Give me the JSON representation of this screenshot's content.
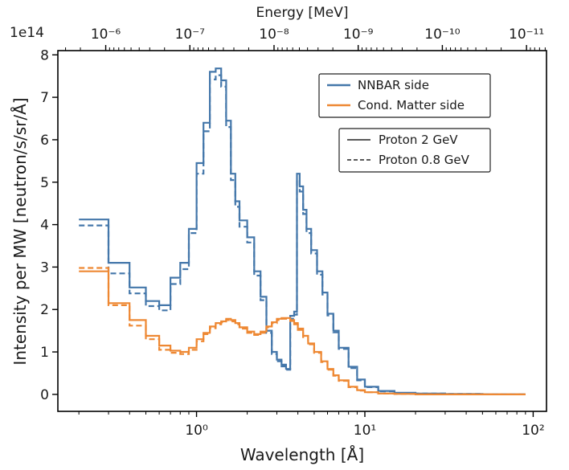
{
  "chart_data": {
    "type": "line",
    "drawstyle": "steps",
    "xlabel": "Wavelength [Å]",
    "ylabel": "Intensity per MW [neutron/s/sr/Å]",
    "secondary_xlabel": "Energy [MeV]",
    "y_offset_label": "1e14",
    "xscale": "log",
    "xlim": [
      0.15,
      120
    ],
    "ylim": [
      -0.4,
      8.1
    ],
    "x_ticks": [
      1,
      10,
      100
    ],
    "x_tick_labels": [
      "10⁰",
      "10¹",
      "10²"
    ],
    "y_ticks": [
      0,
      1,
      2,
      3,
      4,
      5,
      6,
      7,
      8
    ],
    "y_tick_labels": [
      "0",
      "1",
      "2",
      "3",
      "4",
      "5",
      "6",
      "7",
      "8"
    ],
    "energy_ticks": [
      0.2887,
      0.913,
      2.887,
      9.13,
      28.87,
      91.3
    ],
    "energy_tick_labels": [
      "10⁻⁶",
      "10⁻⁷",
      "10⁻⁸",
      "10⁻⁹",
      "10⁻¹⁰",
      "10⁻¹¹"
    ],
    "grid": false,
    "legends": [
      {
        "placement": "top-right",
        "entries": [
          {
            "label": "NNBAR side",
            "color": "#4477aa",
            "style": "solid"
          },
          {
            "label": "Cond. Matter side",
            "color": "#ee8833",
            "style": "solid"
          }
        ]
      },
      {
        "placement": "upper-right",
        "entries": [
          {
            "label": "Proton 2 GeV",
            "color": "#222222",
            "style": "solid"
          },
          {
            "label": "Proton 0.8 GeV",
            "color": "#222222",
            "style": "dashed"
          }
        ]
      }
    ],
    "series": [
      {
        "color": "#4477aa",
        "style": "solid",
        "x": [
          0.2,
          0.3,
          0.4,
          0.5,
          0.6,
          0.7,
          0.8,
          0.9,
          1.0,
          1.1,
          1.2,
          1.3,
          1.4,
          1.5,
          1.6,
          1.7,
          1.8,
          2.0,
          2.2,
          2.4,
          2.6,
          2.8,
          3.0,
          3.2,
          3.4,
          3.6,
          3.8,
          3.95,
          4.1,
          4.3,
          4.5,
          4.8,
          5.2,
          5.6,
          6.0,
          6.5,
          7.0,
          8.0,
          9.0,
          10.0,
          12.0,
          15.0,
          20.0,
          30.0,
          50.0,
          90.0
        ],
        "y": [
          4.12,
          3.1,
          2.52,
          2.2,
          2.1,
          2.75,
          3.1,
          3.9,
          5.45,
          6.4,
          7.6,
          7.68,
          7.4,
          6.45,
          5.2,
          4.55,
          4.1,
          3.7,
          2.9,
          2.3,
          1.5,
          1.0,
          0.82,
          0.7,
          0.6,
          1.85,
          1.95,
          5.2,
          4.9,
          4.35,
          3.9,
          3.4,
          2.9,
          2.4,
          1.9,
          1.5,
          1.1,
          0.65,
          0.35,
          0.18,
          0.08,
          0.04,
          0.02,
          0.01,
          0.0,
          0.0
        ]
      },
      {
        "color": "#4477aa",
        "style": "dashed",
        "x": [
          0.2,
          0.3,
          0.4,
          0.5,
          0.6,
          0.7,
          0.8,
          0.9,
          1.0,
          1.1,
          1.2,
          1.3,
          1.4,
          1.5,
          1.6,
          1.7,
          1.8,
          2.0,
          2.2,
          2.4,
          2.6,
          2.8,
          3.0,
          3.2,
          3.4,
          3.6,
          3.8,
          3.95,
          4.1,
          4.3,
          4.5,
          4.8,
          5.2,
          5.6,
          6.0,
          6.5,
          7.0,
          8.0,
          9.0,
          10.0,
          12.0,
          15.0,
          20.0,
          30.0,
          50.0,
          90.0
        ],
        "y": [
          3.98,
          2.85,
          2.38,
          2.08,
          1.98,
          2.6,
          2.95,
          3.8,
          5.2,
          6.2,
          7.42,
          7.52,
          7.25,
          6.3,
          5.05,
          4.42,
          3.95,
          3.58,
          2.8,
          2.22,
          1.45,
          0.95,
          0.78,
          0.66,
          0.58,
          1.78,
          1.88,
          5.05,
          4.78,
          4.25,
          3.8,
          3.32,
          2.82,
          2.35,
          1.86,
          1.46,
          1.07,
          0.62,
          0.33,
          0.17,
          0.07,
          0.03,
          0.02,
          0.01,
          0.0,
          0.0
        ]
      },
      {
        "color": "#ee8833",
        "style": "solid",
        "x": [
          0.2,
          0.3,
          0.4,
          0.5,
          0.6,
          0.7,
          0.8,
          0.9,
          1.0,
          1.1,
          1.2,
          1.3,
          1.4,
          1.5,
          1.6,
          1.7,
          1.8,
          2.0,
          2.2,
          2.4,
          2.6,
          2.8,
          3.0,
          3.2,
          3.4,
          3.6,
          3.8,
          4.0,
          4.3,
          4.6,
          5.0,
          5.5,
          6.0,
          6.5,
          7.0,
          8.0,
          9.0,
          10.0,
          12.0,
          15.0,
          20.0,
          30.0,
          50.0,
          90.0
        ],
        "y": [
          2.9,
          2.15,
          1.75,
          1.38,
          1.15,
          1.03,
          1.0,
          1.1,
          1.3,
          1.45,
          1.6,
          1.68,
          1.72,
          1.78,
          1.75,
          1.68,
          1.58,
          1.48,
          1.42,
          1.48,
          1.6,
          1.7,
          1.78,
          1.8,
          1.8,
          1.75,
          1.68,
          1.55,
          1.38,
          1.2,
          1.0,
          0.78,
          0.6,
          0.45,
          0.33,
          0.18,
          0.1,
          0.05,
          0.02,
          0.01,
          0.0,
          0.0,
          0.0,
          0.0
        ]
      },
      {
        "color": "#ee8833",
        "style": "dashed",
        "x": [
          0.2,
          0.3,
          0.4,
          0.5,
          0.6,
          0.7,
          0.8,
          0.9,
          1.0,
          1.1,
          1.2,
          1.3,
          1.4,
          1.5,
          1.6,
          1.7,
          1.8,
          2.0,
          2.2,
          2.4,
          2.6,
          2.8,
          3.0,
          3.2,
          3.4,
          3.6,
          3.8,
          4.0,
          4.3,
          4.6,
          5.0,
          5.5,
          6.0,
          6.5,
          7.0,
          8.0,
          9.0,
          10.0,
          12.0,
          15.0,
          20.0,
          30.0,
          50.0,
          90.0
        ],
        "y": [
          2.98,
          2.1,
          1.62,
          1.3,
          1.05,
          0.98,
          0.95,
          1.05,
          1.25,
          1.42,
          1.56,
          1.65,
          1.7,
          1.75,
          1.72,
          1.65,
          1.55,
          1.45,
          1.4,
          1.45,
          1.58,
          1.68,
          1.75,
          1.78,
          1.78,
          1.73,
          1.65,
          1.52,
          1.35,
          1.18,
          0.98,
          0.76,
          0.58,
          0.44,
          0.32,
          0.17,
          0.09,
          0.05,
          0.02,
          0.01,
          0.0,
          0.0,
          0.0,
          0.0
        ]
      }
    ]
  }
}
